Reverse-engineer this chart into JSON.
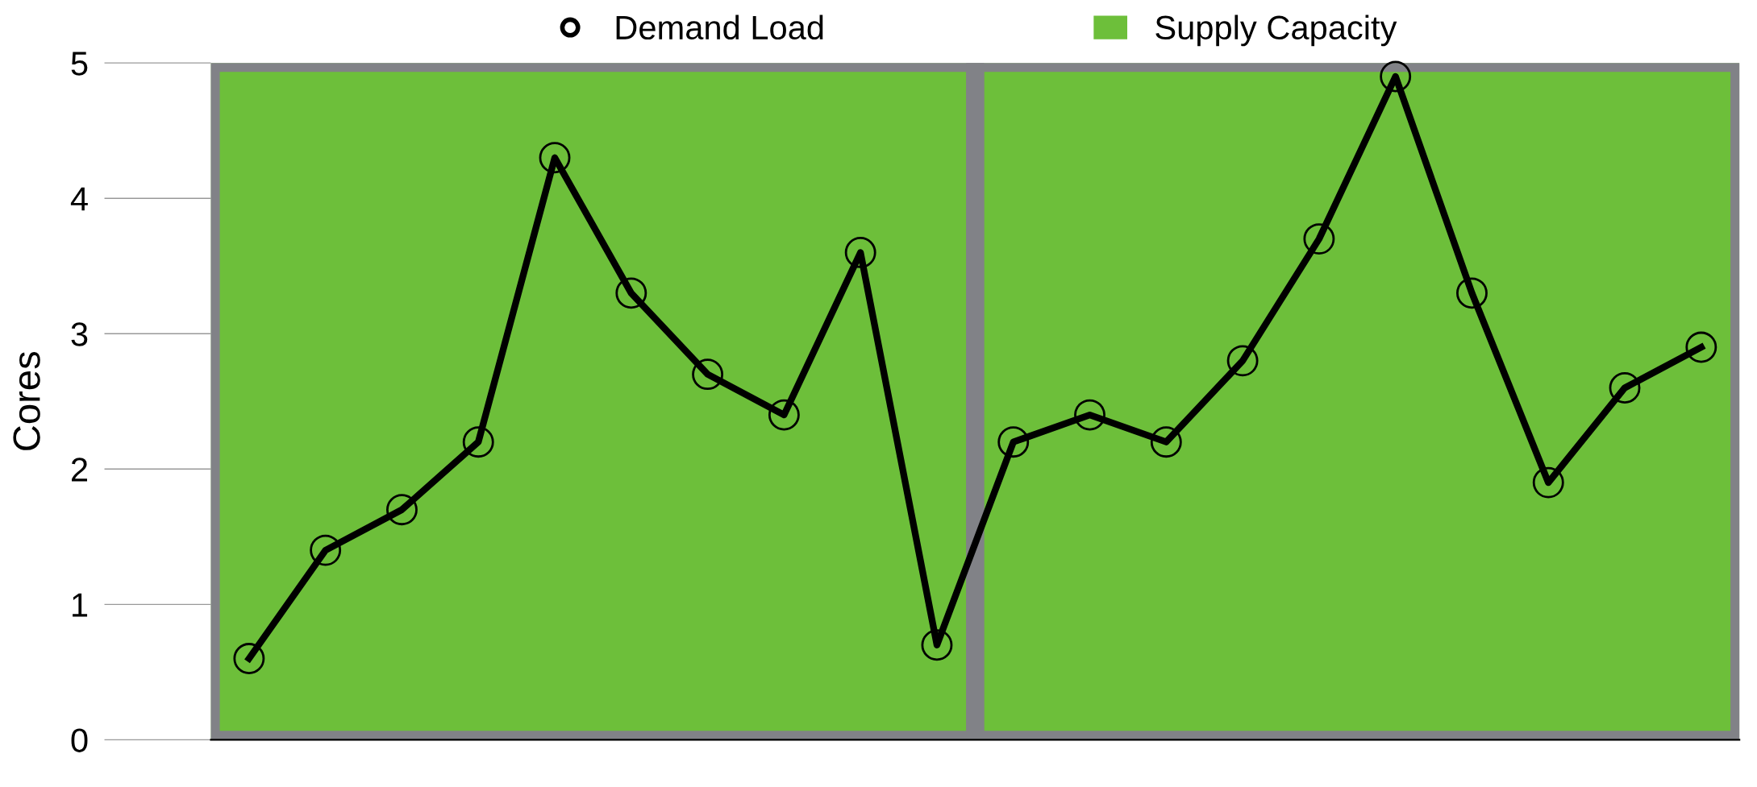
{
  "chart_data": {
    "type": "line",
    "ylabel": "Cores",
    "ylim": [
      0,
      5
    ],
    "yticks": [
      0,
      1,
      2,
      3,
      4,
      5
    ],
    "grid": false,
    "legend": "top",
    "marker": "circle",
    "line_style": "solid",
    "categories": [
      null,
      null,
      null,
      null,
      null,
      null,
      null,
      null,
      null,
      null,
      null,
      null,
      null,
      null,
      null,
      null,
      null,
      null,
      null,
      null
    ],
    "bands": [
      {
        "axis": "y",
        "from": 0,
        "to": 5,
        "label": "Supply Capacity",
        "color": "#6dbf3a"
      }
    ],
    "series": [
      {
        "name": "Demand Load",
        "color": "#000000",
        "values": [
          0.6,
          1.4,
          1.7,
          2.2,
          4.3,
          3.3,
          2.7,
          2.4,
          3.6,
          0.7,
          2.2,
          2.4,
          2.2,
          2.8,
          3.7,
          4.9,
          3.3,
          1.9,
          2.6,
          2.9
        ]
      }
    ]
  }
}
